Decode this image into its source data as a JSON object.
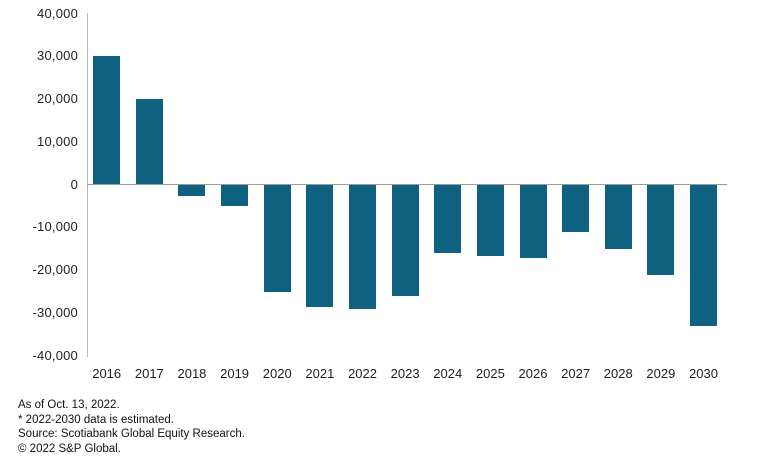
{
  "chart_data": {
    "type": "bar",
    "title": "",
    "xlabel": "",
    "ylabel": "",
    "categories": [
      "2016",
      "2017",
      "2018",
      "2019",
      "2020",
      "2021",
      "2022",
      "2023",
      "2024",
      "2025",
      "2026",
      "2027",
      "2028",
      "2029",
      "2030"
    ],
    "values": [
      30000,
      20000,
      -2500,
      -5000,
      -25000,
      -28500,
      -29000,
      -26000,
      -16000,
      -16500,
      -17000,
      -11000,
      -15000,
      -21000,
      -33000
    ],
    "ylim": [
      -40000,
      40000
    ],
    "y_tick_values": [
      40000,
      30000,
      20000,
      10000,
      0,
      -10000,
      -20000,
      -30000,
      -40000
    ],
    "y_tick_labels": [
      "40,000",
      "30,000",
      "20,000",
      "10,000",
      "0",
      "-10,000",
      "-20,000",
      "-30,000",
      "-40,000"
    ],
    "grid": "none",
    "legend": "none",
    "bar_color": "#0e6280",
    "axis_color": "#b9b9b9",
    "zero_line_color": "#9b9b9b",
    "tick_label_color": "#1f1f1f"
  },
  "footer": {
    "lines": [
      "As of Oct. 13, 2022.",
      "* 2022-2030 data is estimated.",
      "Source: Scotiabank Global Equity Research.",
      "© 2022 S&P Global."
    ]
  }
}
